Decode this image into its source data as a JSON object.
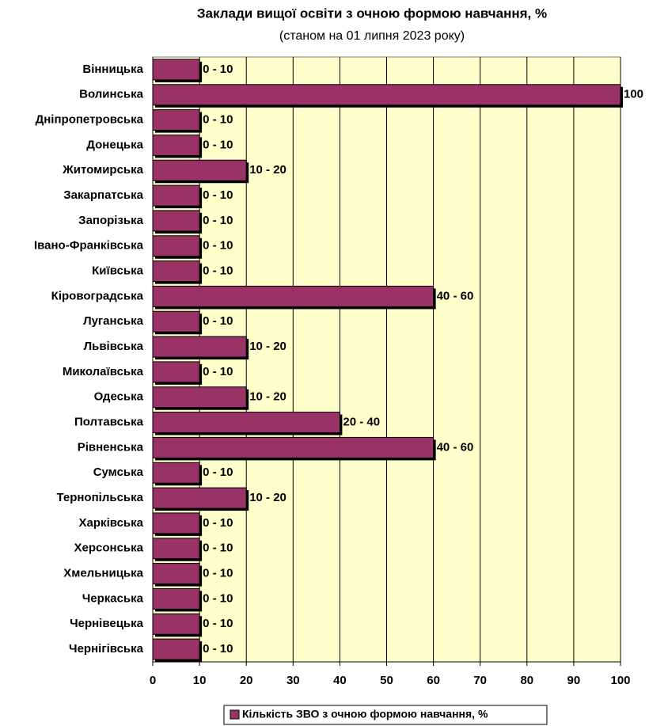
{
  "chart_data": {
    "type": "bar",
    "orientation": "horizontal",
    "title": "Заклади вищої освіти з очною формою навчання, %",
    "subtitle": "(станом на 01 липня 2023 року)",
    "categories": [
      "Вінницька",
      "Волинська",
      "Дніпропетровська",
      "Донецька",
      "Житомирська",
      "Закарпатська",
      "Запорізька",
      "Івано-Франківська",
      "Київська",
      "Кіровоградська",
      "Луганська",
      "Львівська",
      "Миколаївська",
      "Одеська",
      "Полтавська",
      "Рівненська",
      "Сумська",
      "Тернопільська",
      "Харківська",
      "Херсонська",
      "Хмельницька",
      "Черкаська",
      "Чернівецька",
      "Чернігівська"
    ],
    "series": [
      {
        "name": "Кількість ЗВО з очною формою навчання, %",
        "color": "#993366",
        "values": [
          10,
          100,
          10,
          10,
          20,
          10,
          10,
          10,
          10,
          60,
          10,
          20,
          10,
          20,
          40,
          60,
          10,
          20,
          10,
          10,
          10,
          10,
          10,
          10
        ],
        "value_labels": [
          "0 - 10",
          "100",
          "0 - 10",
          "0 - 10",
          "10 - 20",
          "0 - 10",
          "0 - 10",
          "0 - 10",
          "0 - 10",
          "40 - 60",
          "0 - 10",
          "10 - 20",
          "0 - 10",
          "10 - 20",
          "20 - 40",
          "40 - 60",
          "0 - 10",
          "10 - 20",
          "0 - 10",
          "0 - 10",
          "0 - 10",
          "0 - 10",
          "0 - 10",
          "0 - 10"
        ]
      }
    ],
    "xlim": [
      0,
      100
    ],
    "xticks": [
      0,
      10,
      20,
      30,
      40,
      50,
      60,
      70,
      80,
      90,
      100
    ],
    "grid": true,
    "legend": "bottom"
  }
}
